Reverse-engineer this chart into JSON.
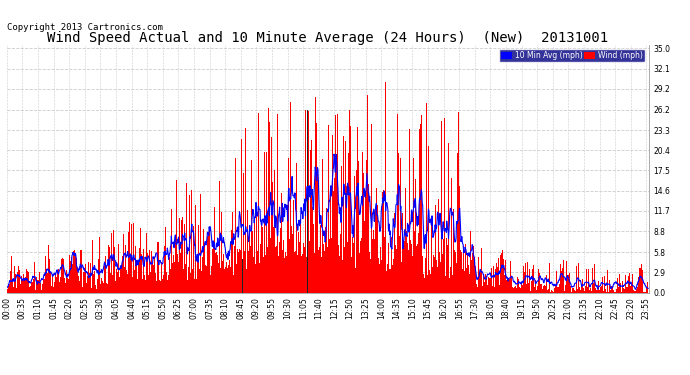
{
  "title": "Wind Speed Actual and 10 Minute Average (24 Hours)  (New)  20131001",
  "copyright": "Copyright 2013 Cartronics.com",
  "legend_blue_label": "10 Min Avg (mph)",
  "legend_red_label": "Wind (mph)",
  "yticks": [
    0.0,
    2.9,
    5.8,
    8.8,
    11.7,
    14.6,
    17.5,
    20.4,
    23.3,
    26.2,
    29.2,
    32.1,
    35.0
  ],
  "background_color": "#ffffff",
  "plot_bg_color": "#ffffff",
  "grid_color": "#cccccc",
  "title_fontsize": 10,
  "copyright_fontsize": 6.5,
  "tick_fontsize": 5.5,
  "wind_color": "#ff0000",
  "avg_color": "#0000ff",
  "dark_bar_color": "#222222",
  "ymax": 35.0
}
